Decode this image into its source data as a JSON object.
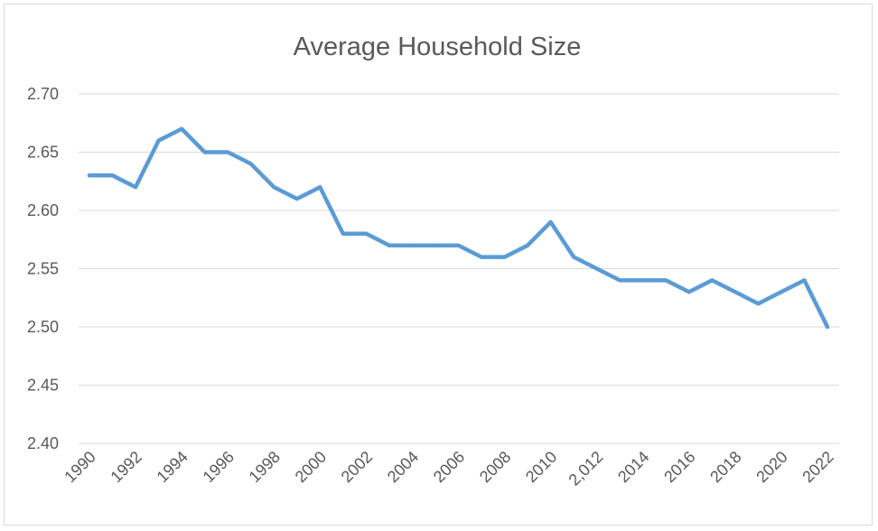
{
  "chart_data": {
    "type": "line",
    "title": "Average Household Size",
    "xlabel": "",
    "ylabel": "",
    "ylim": [
      2.4,
      2.7
    ],
    "yticks": [
      "2.40",
      "2.45",
      "2.50",
      "2.55",
      "2.60",
      "2.65",
      "2.70"
    ],
    "x": [
      1990,
      1991,
      1992,
      1993,
      1994,
      1995,
      1996,
      1997,
      1998,
      1999,
      2000,
      2001,
      2002,
      2003,
      2004,
      2005,
      2006,
      2007,
      2008,
      2009,
      2010,
      2011,
      2012,
      2013,
      2014,
      2015,
      2016,
      2017,
      2018,
      2019,
      2020,
      2021,
      2022
    ],
    "xtick_labels": [
      "1990",
      "1992",
      "1994",
      "1996",
      "1998",
      "2000",
      "2002",
      "2004",
      "2006",
      "2008",
      "2010",
      "2,012",
      "2014",
      "2016",
      "2018",
      "2020",
      "2022"
    ],
    "series": [
      {
        "color": "#5b9bd5",
        "values": [
          2.63,
          2.63,
          2.62,
          2.66,
          2.67,
          2.65,
          2.65,
          2.64,
          2.62,
          2.61,
          2.62,
          2.58,
          2.58,
          2.57,
          2.57,
          2.57,
          2.57,
          2.56,
          2.56,
          2.57,
          2.59,
          2.56,
          2.55,
          2.54,
          2.54,
          2.54,
          2.53,
          2.54,
          2.53,
          2.52,
          2.53,
          2.54,
          2.5
        ]
      }
    ],
    "grid": true,
    "legend": "none"
  }
}
